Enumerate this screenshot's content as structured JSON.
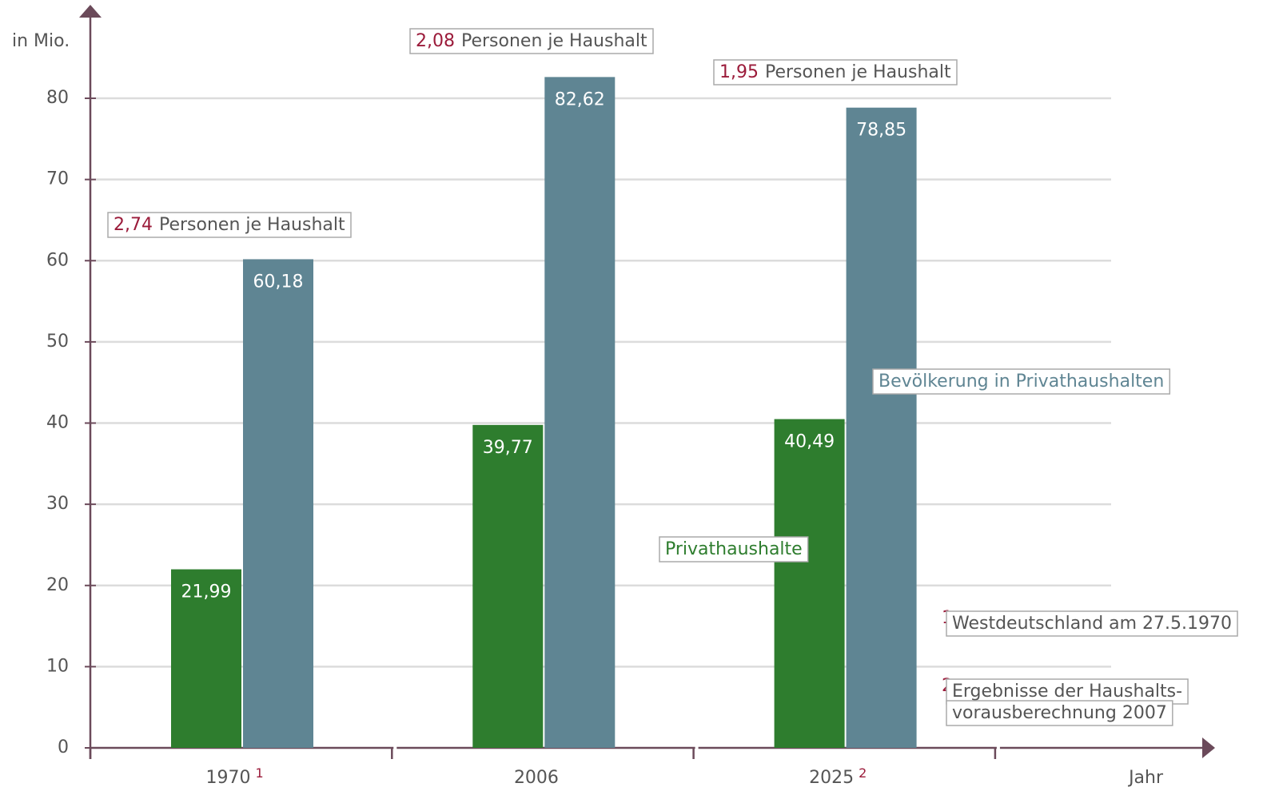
{
  "chart_data": {
    "type": "bar",
    "y_label": "in Mio.",
    "x_label": "Jahr",
    "categories": [
      "1970",
      "2006",
      "2025"
    ],
    "category_notes": [
      "1",
      null,
      "2"
    ],
    "series": [
      {
        "name": "Privathaushalte",
        "color": "#2e7d2e",
        "values": [
          21.99,
          39.77,
          40.49
        ],
        "value_labels": [
          "21,99",
          "39,77",
          "40,49"
        ]
      },
      {
        "name": "Bevölkerung in Privathaushalten",
        "color": "#5f8593",
        "values": [
          60.18,
          82.62,
          78.85
        ],
        "value_labels": [
          "60,18",
          "82,62",
          "78,85"
        ]
      }
    ],
    "annotations": [
      {
        "number": "2,74",
        "text": "Personen je Haushalt"
      },
      {
        "number": "2,08",
        "text": "Personen je Haushalt"
      },
      {
        "number": "1,95",
        "text": "Personen je Haushalt"
      }
    ],
    "footnotes": [
      {
        "mark": "1",
        "lines": [
          "Westdeutschland am 27.5.1970"
        ]
      },
      {
        "mark": "2",
        "lines": [
          "Ergebnisse der Haushalts-",
          "vorausberechnung 2007"
        ]
      }
    ],
    "ylim": [
      0,
      90
    ],
    "yticks": [
      0,
      10,
      20,
      30,
      40,
      50,
      60,
      70,
      80
    ],
    "grid": true
  }
}
